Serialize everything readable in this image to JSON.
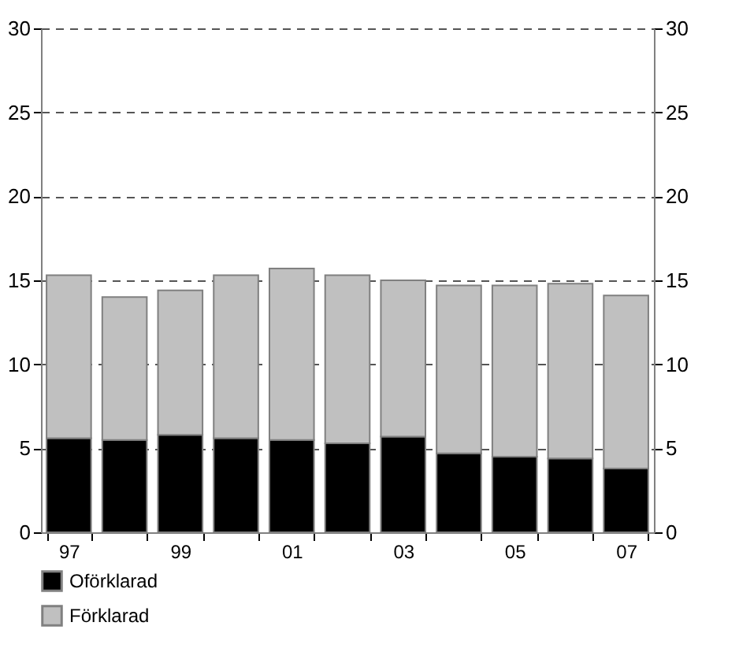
{
  "chart_data": {
    "type": "bar",
    "stacked": true,
    "categories": [
      "97",
      null,
      "99",
      null,
      "01",
      null,
      "03",
      null,
      "05",
      null,
      "07"
    ],
    "series": [
      {
        "name": "Oförklarad",
        "color": "#000000",
        "values": [
          5.6,
          5.5,
          5.8,
          5.6,
          5.5,
          5.3,
          5.7,
          4.7,
          4.5,
          4.4,
          3.8
        ]
      },
      {
        "name": "Förklarad",
        "color": "#c0c0c0",
        "values": [
          9.7,
          8.5,
          8.6,
          9.7,
          10.2,
          10.0,
          9.3,
          10.0,
          10.2,
          10.4,
          10.3
        ]
      }
    ],
    "ylim": [
      0,
      30
    ],
    "yticks": [
      0,
      5,
      10,
      15,
      20,
      25,
      30
    ],
    "y2lim": [
      0,
      30
    ],
    "y2ticks": [
      0,
      5,
      10,
      15,
      20,
      25,
      30
    ],
    "grid": "y",
    "legend": "bottom left"
  }
}
